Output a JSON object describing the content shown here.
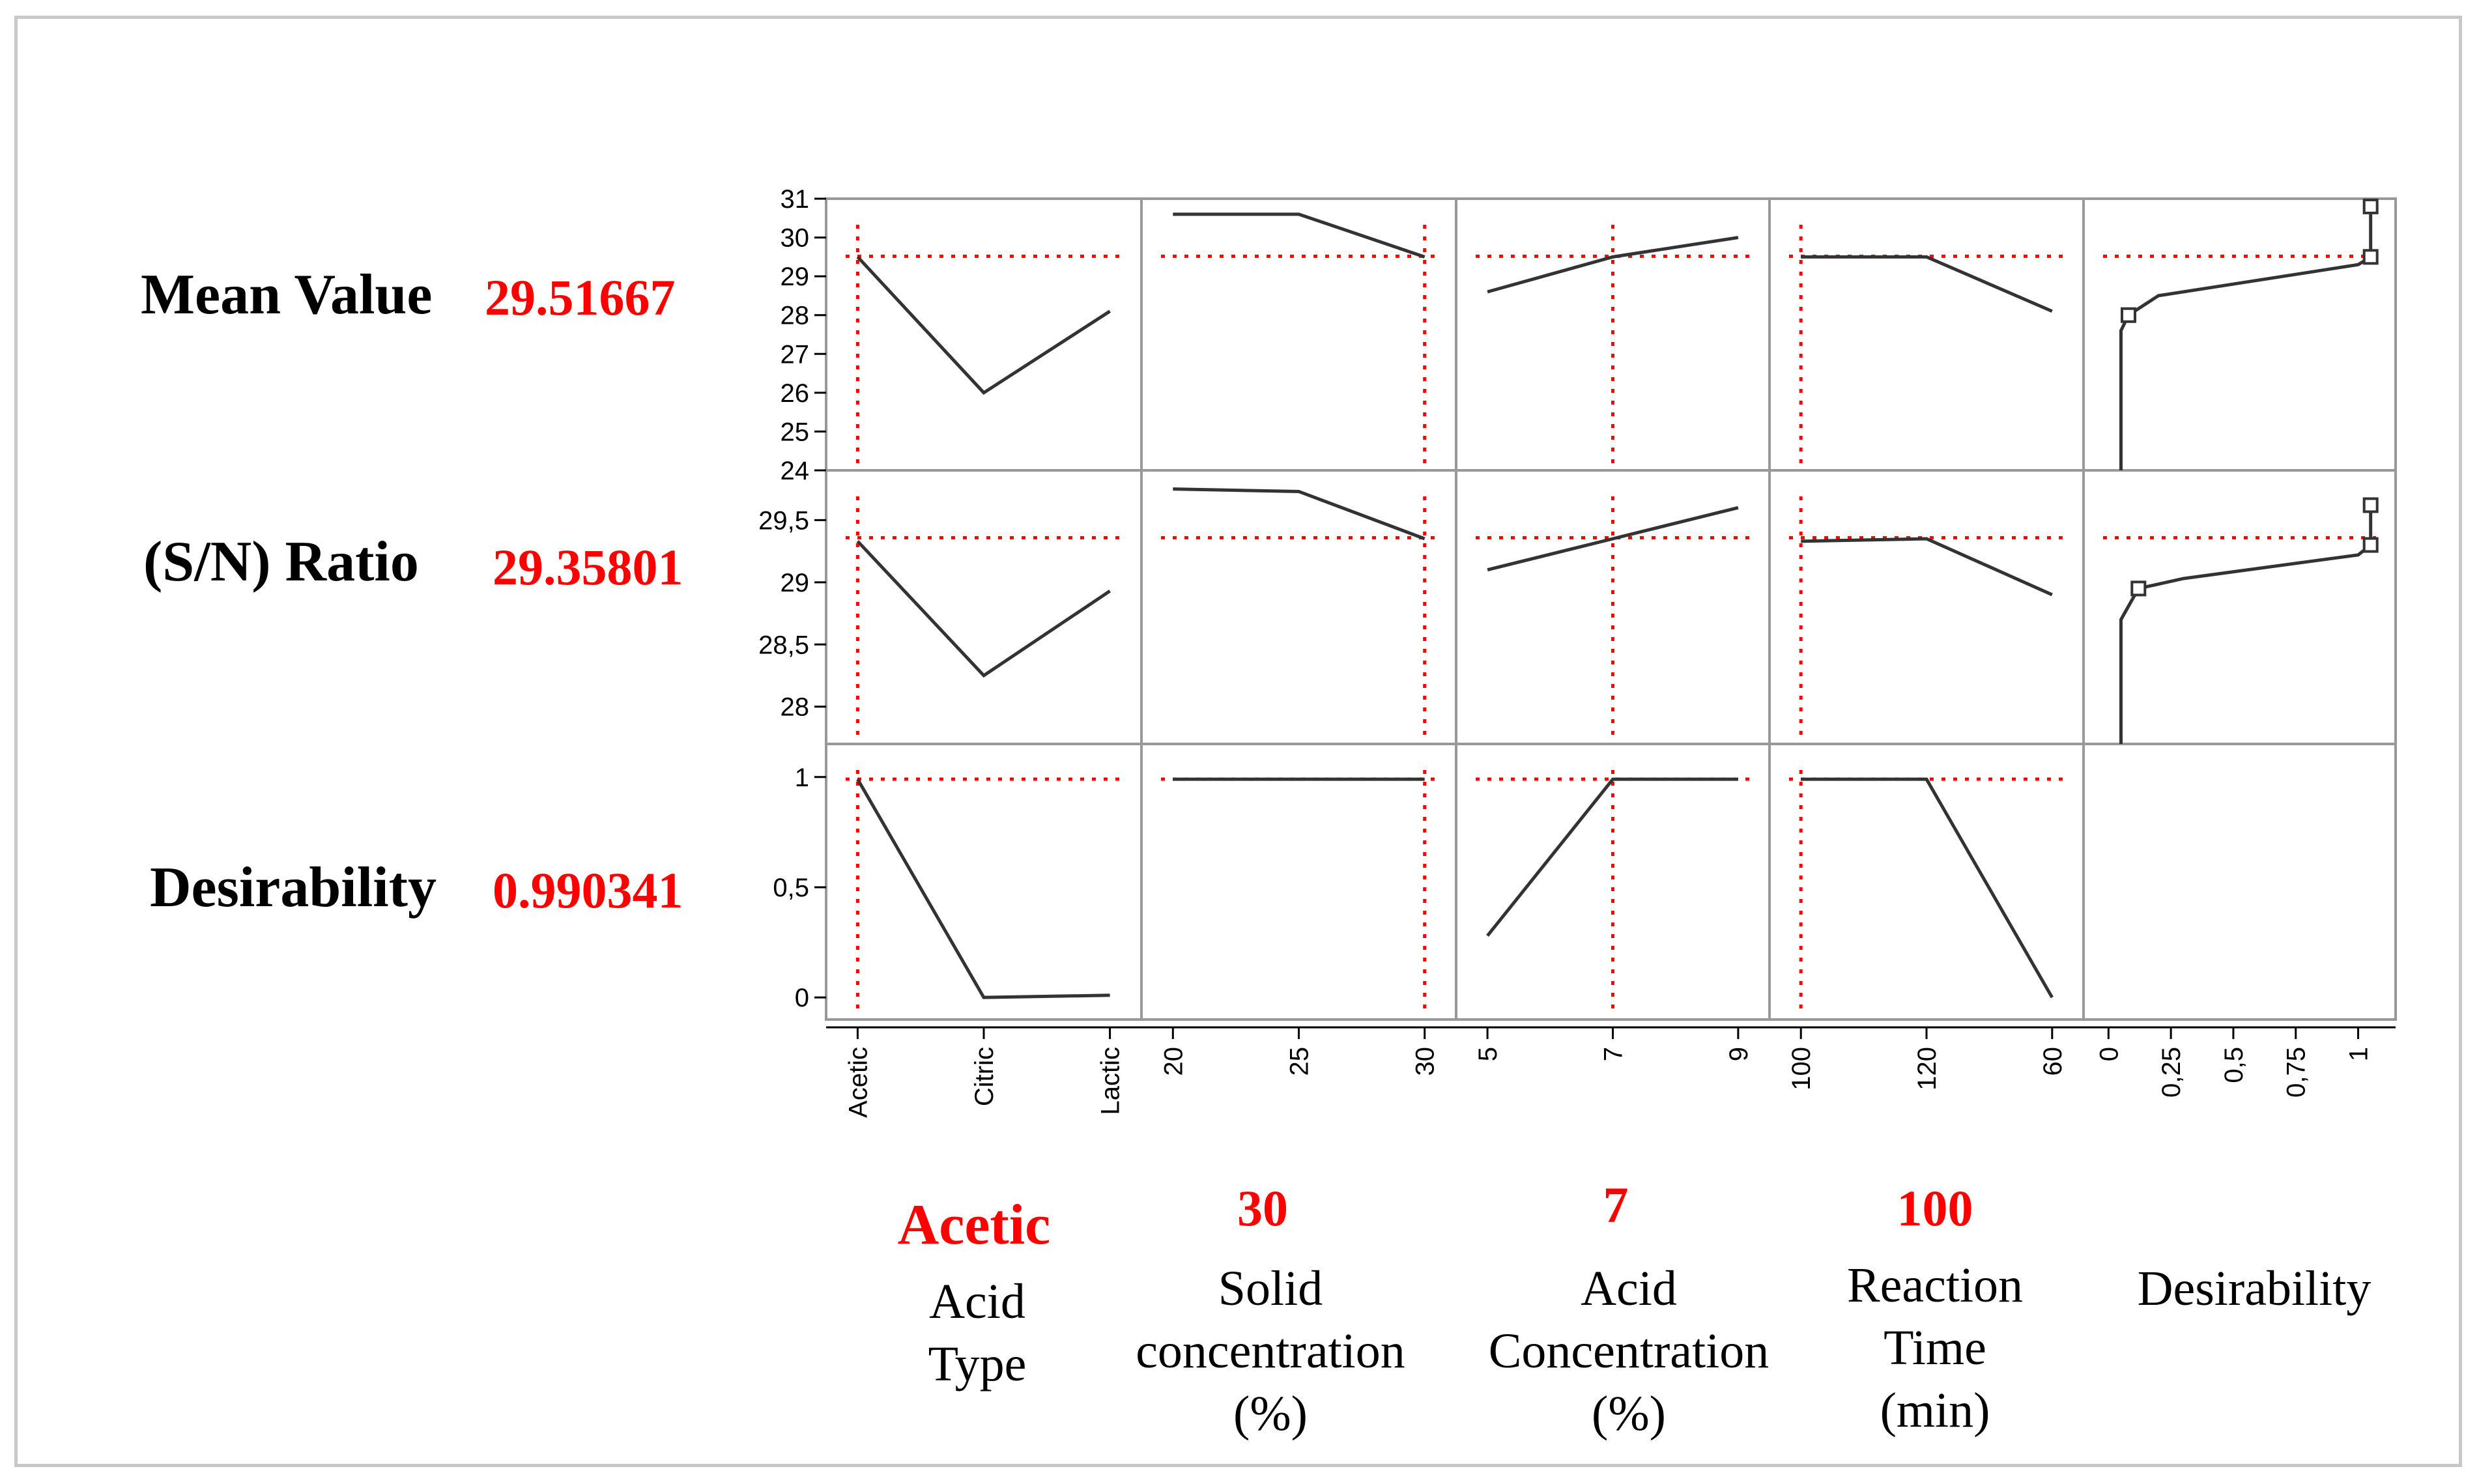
{
  "rows": [
    {
      "name": "Mean Value",
      "value": "29.51667",
      "yticks": [
        "31",
        "30",
        "29",
        "28",
        "27",
        "26",
        "25",
        "24"
      ],
      "yrange": [
        24,
        31
      ],
      "current": 29.51667
    },
    {
      "name": "(S/N) Ratio",
      "value": "29.35801",
      "yticks": [
        "29,5",
        "29",
        "28,5",
        "28"
      ],
      "yrange": [
        27.7,
        29.9
      ],
      "current": 29.35801
    },
    {
      "name": "Desirability",
      "value": "0.990341",
      "yticks": [
        "1",
        "0,5",
        "0"
      ],
      "yrange": [
        -0.1,
        1.15
      ],
      "current": 0.990341
    }
  ],
  "columns": [
    {
      "setting": "Acetic",
      "label_lines": [
        "Acid",
        "Type"
      ],
      "xticks": [
        "Acetic",
        "Citric",
        "Lactic"
      ],
      "current_index": 0
    },
    {
      "setting": "30",
      "label_lines": [
        "Solid",
        "concentration",
        "(%)"
      ],
      "xticks": [
        "20",
        "25",
        "30"
      ],
      "current_index": 2
    },
    {
      "setting": "7",
      "label_lines": [
        "Acid",
        "Concentration",
        "(%)"
      ],
      "xticks": [
        "5",
        "7",
        "9"
      ],
      "current_index": 1
    },
    {
      "setting": "100",
      "label_lines": [
        "Reaction",
        "Time",
        "(min)"
      ],
      "xticks": [
        "100",
        "120",
        "60"
      ],
      "current_index": 0
    },
    {
      "setting": "",
      "label_lines": [
        "Desirability"
      ],
      "xticks": [
        "0",
        "0,25",
        "0,5",
        "0,75",
        "1"
      ],
      "current_index": null
    }
  ],
  "chart_data": {
    "type": "line",
    "title": "",
    "series": [
      {
        "row": "Mean Value",
        "factor": "Acid Type",
        "x": [
          "Acetic",
          "Citric",
          "Lactic"
        ],
        "values": [
          29.5,
          26.0,
          28.1
        ]
      },
      {
        "row": "Mean Value",
        "factor": "Solid concentration (%)",
        "x": [
          20,
          25,
          30
        ],
        "values": [
          30.6,
          30.6,
          29.5
        ]
      },
      {
        "row": "Mean Value",
        "factor": "Acid Concentration (%)",
        "x": [
          5,
          7,
          9
        ],
        "values": [
          28.6,
          29.5,
          30.0
        ]
      },
      {
        "row": "Mean Value",
        "factor": "Reaction Time (min)",
        "x": [
          100,
          120,
          60
        ],
        "values": [
          29.5,
          29.5,
          28.1
        ]
      },
      {
        "row": "(S/N) Ratio",
        "factor": "Acid Type",
        "x": [
          "Acetic",
          "Citric",
          "Lactic"
        ],
        "values": [
          29.33,
          28.25,
          28.93
        ]
      },
      {
        "row": "(S/N) Ratio",
        "factor": "Solid concentration (%)",
        "x": [
          20,
          25,
          30
        ],
        "values": [
          29.75,
          29.73,
          29.35
        ]
      },
      {
        "row": "(S/N) Ratio",
        "factor": "Acid Concentration (%)",
        "x": [
          5,
          7,
          9
        ],
        "values": [
          29.1,
          29.35,
          29.6
        ]
      },
      {
        "row": "(S/N) Ratio",
        "factor": "Reaction Time (min)",
        "x": [
          100,
          120,
          60
        ],
        "values": [
          29.33,
          29.35,
          28.9
        ]
      },
      {
        "row": "Desirability",
        "factor": "Acid Type",
        "x": [
          "Acetic",
          "Citric",
          "Lactic"
        ],
        "values": [
          0.99,
          0.0,
          0.01
        ]
      },
      {
        "row": "Desirability",
        "factor": "Solid concentration (%)",
        "x": [
          20,
          25,
          30
        ],
        "values": [
          0.99,
          0.99,
          0.99
        ]
      },
      {
        "row": "Desirability",
        "factor": "Acid Concentration (%)",
        "x": [
          5,
          7,
          9
        ],
        "values": [
          0.28,
          0.99,
          0.99
        ]
      },
      {
        "row": "Desirability",
        "factor": "Reaction Time (min)",
        "x": [
          100,
          120,
          60
        ],
        "values": [
          0.99,
          0.99,
          0.0
        ]
      }
    ],
    "desirability_traces": [
      {
        "row": "Mean Value",
        "points": [
          [
            0.05,
            24.0
          ],
          [
            0.05,
            27.6
          ],
          [
            0.08,
            28.0
          ],
          [
            0.2,
            28.5
          ],
          [
            1.0,
            29.3
          ],
          [
            1.05,
            29.5
          ],
          [
            1.05,
            30.8
          ]
        ],
        "markers": [
          [
            0.08,
            28.0
          ],
          [
            1.05,
            29.5
          ],
          [
            1.05,
            30.8
          ]
        ]
      },
      {
        "row": "(S/N) Ratio",
        "points": [
          [
            0.05,
            27.7
          ],
          [
            0.05,
            28.7
          ],
          [
            0.12,
            28.95
          ],
          [
            0.3,
            29.03
          ],
          [
            1.0,
            29.22
          ],
          [
            1.05,
            29.3
          ],
          [
            1.05,
            29.62
          ]
        ],
        "markers": [
          [
            0.12,
            28.95
          ],
          [
            1.05,
            29.3
          ],
          [
            1.05,
            29.62
          ]
        ]
      }
    ],
    "desirability_xlim": [
      -0.1,
      1.15
    ]
  },
  "colors": {
    "line": "#333333",
    "ref": "#ff0000",
    "grid": "#999999",
    "value": "#ff0000"
  }
}
